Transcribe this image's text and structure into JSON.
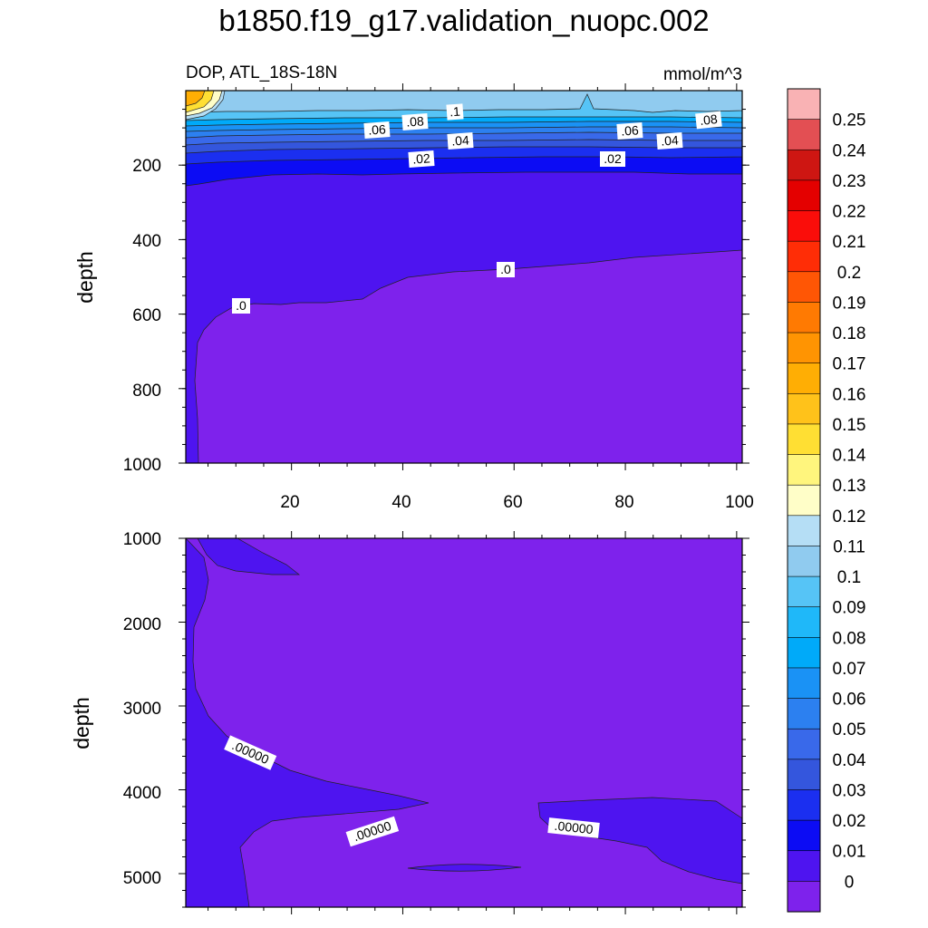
{
  "figure": {
    "title": "b1850.f19_g17.validation_nuopc.002"
  },
  "chart_data": [
    {
      "type": "heatmap",
      "subtitle_left": "DOP, ATL_18S-18N",
      "subtitle_right": "mmol/m^3",
      "ylabel": "depth",
      "xlim": [
        1,
        101
      ],
      "ylim": [
        0,
        1000
      ],
      "y_inverted": true,
      "x_ticks": [
        "20",
        "40",
        "60",
        "80",
        "100"
      ],
      "y_ticks": [
        "200",
        "400",
        "600",
        "800",
        "1000"
      ],
      "contour_labels": [
        ".1",
        ".08",
        ".06",
        ".04",
        ".02",
        ".08",
        ".06",
        ".04",
        ".02",
        ".0",
        ".0"
      ]
    },
    {
      "type": "heatmap",
      "ylabel": "depth",
      "xlim": [
        1,
        101
      ],
      "ylim": [
        1000,
        5400
      ],
      "y_inverted": true,
      "y_ticks": [
        "1000",
        "2000",
        "3000",
        "4000",
        "5000"
      ],
      "contour_labels": [
        ".00000",
        ".00000",
        ".00000"
      ]
    }
  ],
  "colorbar": {
    "labels": [
      "0.25",
      "0.24",
      "0.23",
      "0.22",
      "0.21",
      "0.2",
      "0.19",
      "0.18",
      "0.17",
      "0.16",
      "0.15",
      "0.14",
      "0.13",
      "0.12",
      "0.11",
      "0.1",
      "0.09",
      "0.08",
      "0.07",
      "0.06",
      "0.05",
      "0.04",
      "0.03",
      "0.02",
      "0.01",
      "0"
    ],
    "colors": [
      "#f9b2b4",
      "#e34f53",
      "#ce1612",
      "#e40000",
      "#fa0d0a",
      "#ff2d06",
      "#ff5605",
      "#ff7a02",
      "#ff9402",
      "#ffae04",
      "#ffc21a",
      "#ffdf33",
      "#fff57d",
      "#fffec8",
      "#b5def5",
      "#90cbef",
      "#56c4f6",
      "#1fb8f9",
      "#00aaf9",
      "#1a92f5",
      "#2c80f0",
      "#3969ea",
      "#3456dd",
      "#1b2ff0",
      "#0c0cf4",
      "#4e14f0",
      "#7e22ec"
    ]
  }
}
